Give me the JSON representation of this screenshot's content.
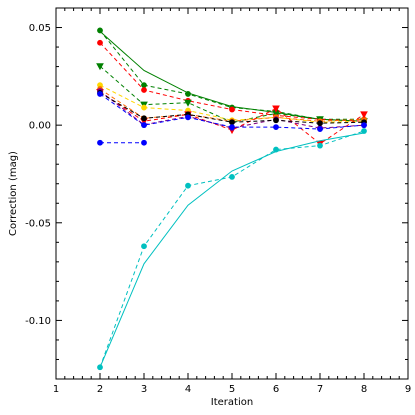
{
  "chart_data": {
    "type": "line",
    "title": "",
    "xlabel": "Iteration",
    "ylabel": "Correction (mag)",
    "xlim": [
      1,
      9
    ],
    "ylim": [
      -0.13,
      0.06
    ],
    "x_ticks": [
      1,
      2,
      3,
      4,
      5,
      6,
      7,
      8,
      9
    ],
    "x_tick_labels": [
      "1",
      "2",
      "3",
      "4",
      "5",
      "6",
      "7",
      "8",
      "9"
    ],
    "y_ticks": [
      0.05,
      0.0,
      -0.05,
      -0.1
    ],
    "y_tick_labels": [
      "0.05",
      "0.00",
      "-0.05",
      "-0.10"
    ],
    "grid": false,
    "legend": false,
    "series": [
      {
        "color": "#008000",
        "style": "solid",
        "marker": "",
        "x": [
          2,
          3,
          4,
          5,
          6,
          7,
          8
        ],
        "y": [
          0.048,
          0.028,
          0.0165,
          0.0095,
          0.0065,
          0.003,
          0.002
        ]
      },
      {
        "color": "#008000",
        "style": "dashed",
        "marker": "circle",
        "x": [
          2,
          3,
          4,
          5,
          6,
          7,
          8
        ],
        "y": [
          0.0485,
          0.0205,
          0.016,
          0.009,
          0.007,
          0.003,
          0.003
        ]
      },
      {
        "color": "#ff0000",
        "style": "dashed",
        "marker": "circle",
        "x": [
          2,
          3,
          4,
          5,
          6,
          7,
          8
        ],
        "y": [
          0.0422,
          0.018,
          0.0125,
          0.008,
          0.005,
          0.003,
          0.002
        ]
      },
      {
        "color": "#008000",
        "style": "dashed",
        "marker": "triangle-down",
        "x": [
          2,
          3,
          4,
          5,
          6,
          7,
          8
        ],
        "y": [
          0.0302,
          0.0105,
          0.0115,
          0.0015,
          0.006,
          0.003,
          0.002
        ]
      },
      {
        "color": "#ffd700",
        "style": "dashed",
        "marker": "circle",
        "x": [
          2,
          3,
          4,
          5,
          6,
          7,
          8
        ],
        "y": [
          0.0205,
          0.009,
          0.0075,
          0.0025,
          0.004,
          0.0015,
          0.002
        ]
      },
      {
        "color": "#ff6a00",
        "style": "dashed",
        "marker": "circle",
        "x": [
          2,
          3,
          4,
          5,
          6,
          7,
          8
        ],
        "y": [
          0.0185,
          0.0035,
          0.0055,
          0.002,
          0.004,
          0.002,
          0.003
        ]
      },
      {
        "color": "#ff0000",
        "style": "dashed",
        "marker": "triangle-down",
        "x": [
          2,
          3,
          4,
          5,
          6,
          7,
          8
        ],
        "y": [
          0.017,
          0.002,
          0.0055,
          -0.0025,
          0.0085,
          -0.0095,
          0.0055
        ]
      },
      {
        "color": "#800080",
        "style": "dashed",
        "marker": "circle",
        "x": [
          2,
          3,
          4,
          5,
          6,
          7,
          8
        ],
        "y": [
          0.0175,
          0.0002,
          0.0045,
          -0.0015,
          0.003,
          -0.0015,
          0.0
        ]
      },
      {
        "color": "#000000",
        "style": "dashed",
        "marker": "circle",
        "x": [
          2,
          3,
          4,
          5,
          6,
          7,
          8
        ],
        "y": [
          0.0165,
          0.0035,
          0.0055,
          0.0015,
          0.0025,
          0.001,
          0.0015
        ]
      },
      {
        "color": "#0000ff",
        "style": "dashed",
        "marker": "circle",
        "x": [
          2,
          3,
          4,
          5,
          6,
          7,
          8
        ],
        "y": [
          0.016,
          0.0,
          0.004,
          -0.001,
          -0.001,
          -0.002,
          0.0
        ]
      },
      {
        "color": "#0000ff",
        "style": "dashed",
        "marker": "circle",
        "x": [
          2,
          3
        ],
        "y": [
          -0.009,
          -0.009
        ]
      },
      {
        "color": "#00c0c0",
        "style": "solid",
        "marker": "",
        "x": [
          2,
          3,
          4,
          5,
          6,
          7,
          8
        ],
        "y": [
          -0.124,
          -0.071,
          -0.041,
          -0.0235,
          -0.0135,
          -0.008,
          -0.004
        ]
      },
      {
        "color": "#00c0c0",
        "style": "dashed",
        "marker": "circle",
        "x": [
          2,
          3,
          4,
          5,
          6,
          7,
          8
        ],
        "y": [
          -0.124,
          -0.062,
          -0.031,
          -0.0265,
          -0.0125,
          -0.0105,
          -0.003
        ]
      }
    ]
  }
}
